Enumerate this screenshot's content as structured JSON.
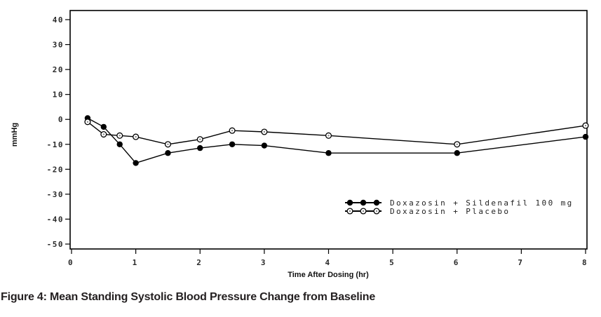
{
  "figure": {
    "caption": "Figure 4: Mean Standing Systolic Blood Pressure Change from Baseline"
  },
  "colors": {
    "line": "#000000",
    "frame": "#000000",
    "open_marker_fill": "#ffffff",
    "open_marker_dot": "#888888",
    "caption_text": "#231f20",
    "background": "#ffffff"
  },
  "chart_data": {
    "type": "line",
    "title": "",
    "xlabel": "Time After Dosing (hr)",
    "ylabel": "mmHg",
    "x": [
      0.25,
      0.5,
      0.75,
      1,
      1.5,
      2,
      2.5,
      3,
      4,
      6,
      8
    ],
    "series": [
      {
        "name": "Doxazosin + Sildenafil 100 mg",
        "marker": "filled-circle",
        "values": [
          0.5,
          -3,
          -10,
          -17.5,
          -13.5,
          -11.5,
          -10,
          -10.5,
          -13.5,
          -13.5,
          -7
        ]
      },
      {
        "name": "Doxazosin + Placebo",
        "marker": "open-circle",
        "values": [
          -1,
          -6,
          -6.5,
          -7,
          -10,
          -8,
          -4.5,
          -5,
          -6.5,
          -10,
          -2.5
        ]
      }
    ],
    "xticks": [
      0,
      1,
      2,
      3,
      4,
      5,
      6,
      7,
      8
    ],
    "yticks": [
      40,
      30,
      20,
      10,
      0,
      -10,
      -20,
      -30,
      -40,
      -50
    ],
    "xlim": [
      0,
      8
    ],
    "ylim": [
      -50,
      40
    ],
    "grid": false,
    "legend_position": "inside-lower-right"
  }
}
